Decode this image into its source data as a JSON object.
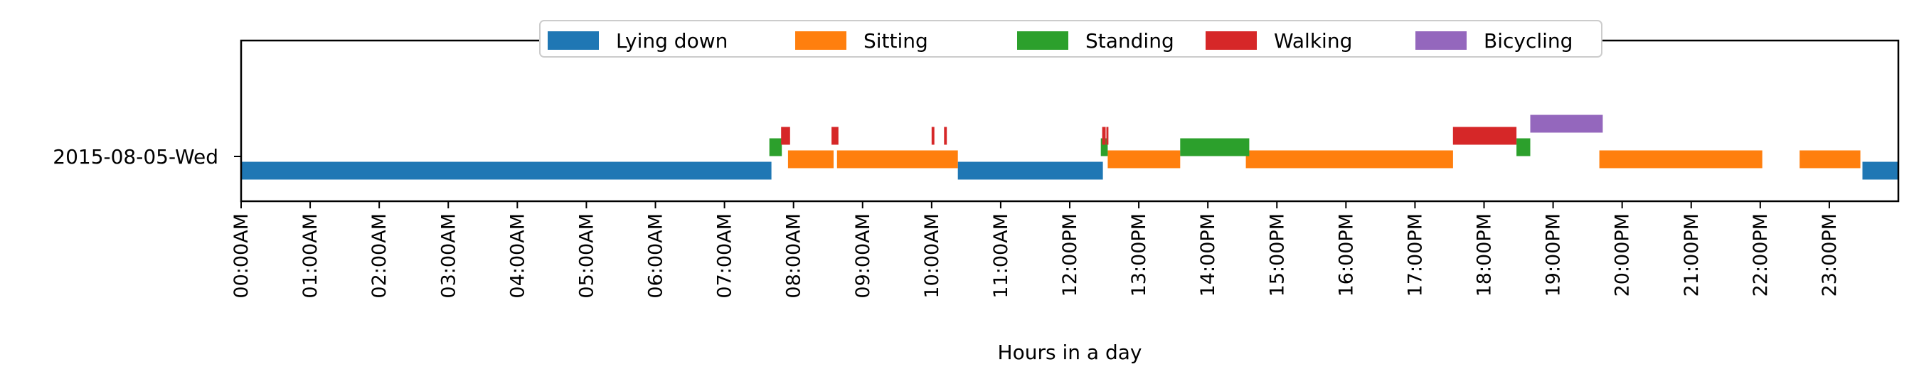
{
  "chart_data": {
    "type": "timeline",
    "xlabel": "Hours in a day",
    "ylabel": "",
    "xlim": [
      0,
      24
    ],
    "row_label": "2015-08-05-Wed",
    "xticks": [
      {
        "value": 0,
        "label": "00:00AM"
      },
      {
        "value": 1,
        "label": "01:00AM"
      },
      {
        "value": 2,
        "label": "02:00AM"
      },
      {
        "value": 3,
        "label": "03:00AM"
      },
      {
        "value": 4,
        "label": "04:00AM"
      },
      {
        "value": 5,
        "label": "05:00AM"
      },
      {
        "value": 6,
        "label": "06:00AM"
      },
      {
        "value": 7,
        "label": "07:00AM"
      },
      {
        "value": 8,
        "label": "08:00AM"
      },
      {
        "value": 9,
        "label": "09:00AM"
      },
      {
        "value": 10,
        "label": "10:00AM"
      },
      {
        "value": 11,
        "label": "11:00AM"
      },
      {
        "value": 12,
        "label": "12:00PM"
      },
      {
        "value": 13,
        "label": "13:00PM"
      },
      {
        "value": 14,
        "label": "14:00PM"
      },
      {
        "value": 15,
        "label": "15:00PM"
      },
      {
        "value": 16,
        "label": "16:00PM"
      },
      {
        "value": 17,
        "label": "17:00PM"
      },
      {
        "value": 18,
        "label": "18:00PM"
      },
      {
        "value": 19,
        "label": "19:00PM"
      },
      {
        "value": 20,
        "label": "20:00PM"
      },
      {
        "value": 21,
        "label": "21:00PM"
      },
      {
        "value": 22,
        "label": "22:00PM"
      },
      {
        "value": 23,
        "label": "23:00PM"
      }
    ],
    "legend_position": "top-center",
    "grid": false,
    "series": [
      {
        "name": "Lying down",
        "color": "#1f77b4",
        "level": 0,
        "intervals": [
          [
            0.0,
            7.68
          ],
          [
            10.38,
            12.48
          ],
          [
            23.48,
            24.0
          ]
        ]
      },
      {
        "name": "Sitting",
        "color": "#ff7f0e",
        "level": 1,
        "intervals": [
          [
            7.92,
            8.58
          ],
          [
            8.63,
            10.38
          ],
          [
            12.55,
            13.6
          ],
          [
            14.55,
            17.55
          ],
          [
            19.67,
            22.03
          ],
          [
            22.57,
            23.45
          ]
        ]
      },
      {
        "name": "Standing",
        "color": "#2ca02c",
        "level": 2,
        "intervals": [
          [
            7.65,
            7.83
          ],
          [
            12.45,
            12.55
          ],
          [
            13.6,
            14.6
          ],
          [
            18.47,
            18.67
          ]
        ]
      },
      {
        "name": "Walking",
        "color": "#d62728",
        "level": 3,
        "intervals": [
          [
            7.82,
            7.95
          ],
          [
            8.55,
            8.65
          ],
          [
            10.0,
            10.04
          ],
          [
            10.18,
            10.22
          ],
          [
            12.47,
            12.52
          ],
          [
            12.53,
            12.56
          ],
          [
            17.55,
            18.47
          ]
        ]
      },
      {
        "name": "Bicycling",
        "color": "#9467bd",
        "level": 4,
        "intervals": [
          [
            18.67,
            19.72
          ]
        ]
      }
    ]
  }
}
